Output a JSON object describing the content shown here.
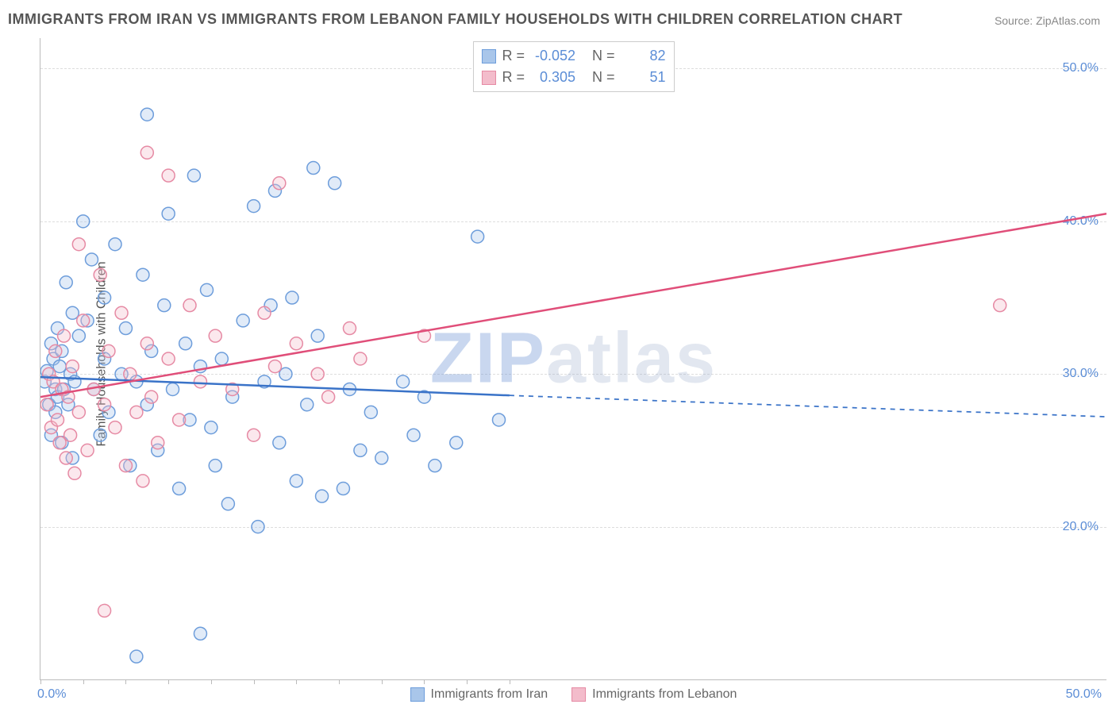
{
  "title": "IMMIGRANTS FROM IRAN VS IMMIGRANTS FROM LEBANON FAMILY HOUSEHOLDS WITH CHILDREN CORRELATION CHART",
  "source_label": "Source: ZipAtlas.com",
  "ylabel": "Family Households with Children",
  "watermark": {
    "part1": "ZIP",
    "part2": "atlas"
  },
  "chart": {
    "type": "scatter-with-regression",
    "background_color": "#ffffff",
    "grid_color": "#dddddd",
    "axis_color": "#bbbbbb",
    "xlim": [
      0,
      50
    ],
    "ylim": [
      10,
      52
    ],
    "xticks_minor": [
      0,
      2,
      4,
      6,
      8,
      10,
      12,
      14,
      16,
      18,
      20,
      22
    ],
    "xlim_labels": {
      "left": "0.0%",
      "right": "50.0%"
    },
    "ytick_labels": [
      {
        "v": 20,
        "label": "20.0%"
      },
      {
        "v": 30,
        "label": "30.0%"
      },
      {
        "v": 40,
        "label": "40.0%"
      },
      {
        "v": 50,
        "label": "50.0%"
      }
    ],
    "marker_radius": 8,
    "marker_stroke_width": 1.5,
    "marker_fill_opacity": 0.35,
    "line_width": 2.5,
    "series": [
      {
        "name": "Immigrants from Iran",
        "color": "#6d9ddb",
        "fill": "#a9c6ea",
        "line_color": "#3a73c8",
        "R": "-0.052",
        "N": "82",
        "regression": {
          "x1": 0,
          "y1": 29.8,
          "x2_solid": 22,
          "y2_solid": 28.6,
          "x2": 50,
          "y2": 27.2
        },
        "points": [
          [
            0.2,
            29.5
          ],
          [
            0.3,
            30.2
          ],
          [
            0.4,
            28.0
          ],
          [
            0.5,
            32.0
          ],
          [
            0.5,
            26.0
          ],
          [
            0.6,
            31.0
          ],
          [
            0.7,
            29.0
          ],
          [
            0.7,
            27.5
          ],
          [
            0.8,
            33.0
          ],
          [
            0.8,
            28.5
          ],
          [
            0.9,
            30.5
          ],
          [
            1.0,
            31.5
          ],
          [
            1.0,
            25.5
          ],
          [
            1.1,
            29.0
          ],
          [
            1.2,
            36.0
          ],
          [
            1.3,
            28.0
          ],
          [
            1.4,
            30.0
          ],
          [
            1.5,
            34.0
          ],
          [
            1.5,
            24.5
          ],
          [
            1.6,
            29.5
          ],
          [
            1.8,
            32.5
          ],
          [
            2.0,
            40.0
          ],
          [
            2.2,
            33.5
          ],
          [
            2.4,
            37.5
          ],
          [
            2.5,
            29.0
          ],
          [
            2.8,
            26.0
          ],
          [
            3.0,
            35.0
          ],
          [
            3.0,
            31.0
          ],
          [
            3.2,
            27.5
          ],
          [
            3.5,
            38.5
          ],
          [
            3.8,
            30.0
          ],
          [
            4.0,
            33.0
          ],
          [
            4.2,
            24.0
          ],
          [
            4.5,
            29.5
          ],
          [
            4.5,
            11.5
          ],
          [
            4.8,
            36.5
          ],
          [
            5.0,
            47.0
          ],
          [
            5.0,
            28.0
          ],
          [
            5.2,
            31.5
          ],
          [
            5.5,
            25.0
          ],
          [
            5.8,
            34.5
          ],
          [
            6.0,
            40.5
          ],
          [
            6.2,
            29.0
          ],
          [
            6.5,
            22.5
          ],
          [
            6.8,
            32.0
          ],
          [
            7.0,
            27.0
          ],
          [
            7.2,
            43.0
          ],
          [
            7.5,
            30.5
          ],
          [
            7.5,
            13.0
          ],
          [
            7.8,
            35.5
          ],
          [
            8.0,
            26.5
          ],
          [
            8.2,
            24.0
          ],
          [
            8.5,
            31.0
          ],
          [
            8.8,
            21.5
          ],
          [
            9.0,
            28.5
          ],
          [
            9.5,
            33.5
          ],
          [
            10.0,
            41.0
          ],
          [
            10.2,
            20.0
          ],
          [
            10.5,
            29.5
          ],
          [
            10.8,
            34.5
          ],
          [
            11.0,
            42.0
          ],
          [
            11.2,
            25.5
          ],
          [
            11.5,
            30.0
          ],
          [
            11.8,
            35.0
          ],
          [
            12.0,
            23.0
          ],
          [
            12.5,
            28.0
          ],
          [
            12.8,
            43.5
          ],
          [
            13.0,
            32.5
          ],
          [
            13.2,
            22.0
          ],
          [
            13.8,
            42.5
          ],
          [
            14.2,
            22.5
          ],
          [
            14.5,
            29.0
          ],
          [
            15.0,
            25.0
          ],
          [
            15.5,
            27.5
          ],
          [
            16.0,
            24.5
          ],
          [
            17.0,
            29.5
          ],
          [
            17.5,
            26.0
          ],
          [
            18.0,
            28.5
          ],
          [
            18.5,
            24.0
          ],
          [
            19.5,
            25.5
          ],
          [
            20.5,
            39.0
          ],
          [
            21.5,
            27.0
          ]
        ]
      },
      {
        "name": "Immigrants from Lebanon",
        "color": "#e68aa4",
        "fill": "#f3bccb",
        "line_color": "#e04e79",
        "R": "0.305",
        "N": "51",
        "regression": {
          "x1": 0,
          "y1": 28.5,
          "x2_solid": 50,
          "y2_solid": 40.5,
          "x2": 50,
          "y2": 40.5
        },
        "points": [
          [
            0.3,
            28.0
          ],
          [
            0.4,
            30.0
          ],
          [
            0.5,
            26.5
          ],
          [
            0.6,
            29.5
          ],
          [
            0.7,
            31.5
          ],
          [
            0.8,
            27.0
          ],
          [
            0.9,
            25.5
          ],
          [
            1.0,
            29.0
          ],
          [
            1.1,
            32.5
          ],
          [
            1.2,
            24.5
          ],
          [
            1.3,
            28.5
          ],
          [
            1.4,
            26.0
          ],
          [
            1.5,
            30.5
          ],
          [
            1.6,
            23.5
          ],
          [
            1.8,
            27.5
          ],
          [
            1.8,
            38.5
          ],
          [
            2.0,
            33.5
          ],
          [
            2.2,
            25.0
          ],
          [
            2.5,
            29.0
          ],
          [
            2.8,
            36.5
          ],
          [
            3.0,
            28.0
          ],
          [
            3.0,
            14.5
          ],
          [
            3.2,
            31.5
          ],
          [
            3.5,
            26.5
          ],
          [
            3.8,
            34.0
          ],
          [
            4.0,
            24.0
          ],
          [
            4.2,
            30.0
          ],
          [
            4.5,
            27.5
          ],
          [
            4.8,
            23.0
          ],
          [
            5.0,
            32.0
          ],
          [
            5.0,
            44.5
          ],
          [
            5.2,
            28.5
          ],
          [
            5.5,
            25.5
          ],
          [
            6.0,
            31.0
          ],
          [
            6.0,
            43.0
          ],
          [
            6.5,
            27.0
          ],
          [
            7.0,
            34.5
          ],
          [
            7.5,
            29.5
          ],
          [
            8.2,
            32.5
          ],
          [
            9.0,
            29.0
          ],
          [
            10.0,
            26.0
          ],
          [
            10.5,
            34.0
          ],
          [
            11.0,
            30.5
          ],
          [
            11.2,
            42.5
          ],
          [
            12.0,
            32.0
          ],
          [
            13.0,
            30.0
          ],
          [
            13.5,
            28.5
          ],
          [
            14.5,
            33.0
          ],
          [
            15.0,
            31.0
          ],
          [
            18.0,
            32.5
          ],
          [
            45.0,
            34.5
          ]
        ]
      }
    ],
    "legend_top": {
      "R_label": "R =",
      "N_label": "N ="
    }
  }
}
